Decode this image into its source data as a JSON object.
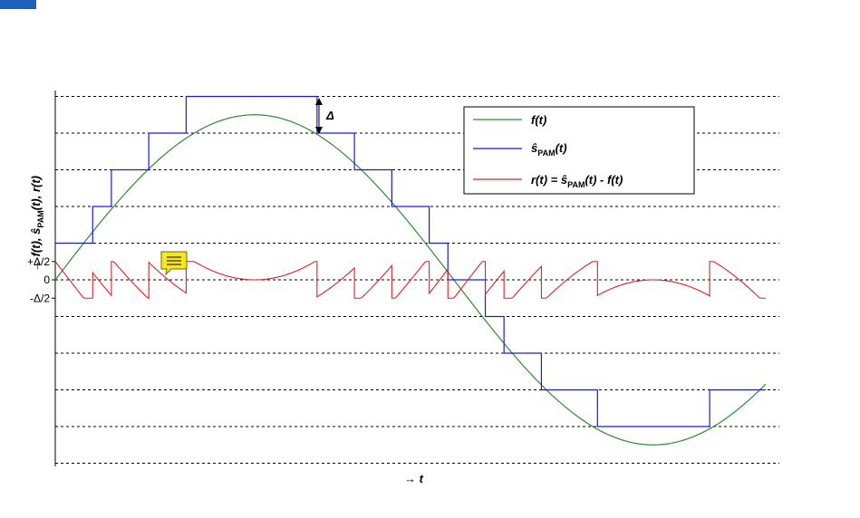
{
  "chart_data": {
    "type": "line",
    "xlabel": "→ t",
    "ylabel_parts": [
      "→ f(t), ",
      "ŝ",
      "PAM",
      "(t), r(t)"
    ],
    "yticks": [
      {
        "value": 0.5,
        "label": "+Δ/2"
      },
      {
        "value": 0,
        "label": "0"
      },
      {
        "value": -0.5,
        "label": "-Δ/2"
      }
    ],
    "xlim": [
      0,
      1
    ],
    "ylim": [
      -5.1,
      5.1
    ],
    "grid_levels": [
      -5,
      -4,
      -3,
      -2,
      -1,
      0,
      1,
      2,
      3,
      4,
      5
    ],
    "grid": "horizontal dashed",
    "delta_annotation": "Δ",
    "legend_position": "top-right",
    "series": [
      {
        "name": "f(t)",
        "legend": [
          "f(t)"
        ],
        "color": "#2e8b2e",
        "kind": "sine",
        "amplitude": 4.5,
        "phase_end": 5.6
      },
      {
        "name": "ŝPAM(t)",
        "legend": [
          "ŝ",
          "PAM",
          "(t)"
        ],
        "color": "#1a1adb",
        "kind": "quantized"
      },
      {
        "name": "r(t)",
        "legend": [
          "r(t) = ",
          "ŝ",
          "PAM",
          "(t) - f(t)"
        ],
        "color": "#e02020",
        "kind": "error"
      }
    ]
  },
  "icons": {
    "comment": "comment-icon",
    "comment_color": "#f5e61e"
  }
}
